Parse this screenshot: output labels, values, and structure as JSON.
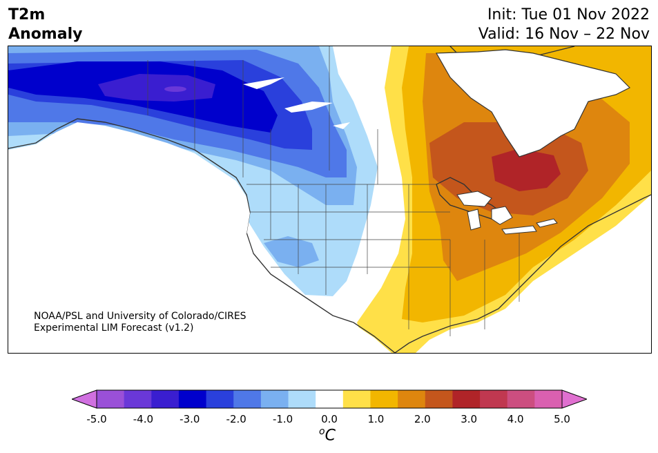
{
  "header": {
    "title_line1": "T2m",
    "title_line2": "Anomaly",
    "init": "Init: Tue 01 Nov 2022",
    "valid": "Valid: 16 Nov – 22 Nov"
  },
  "credit": {
    "line1": "NOAA/PSL and University of Colorado/CIRES",
    "line2": "Experimental LIM Forecast (v1.2)"
  },
  "colorbar": {
    "ticks": [
      "-5.0",
      "-4.0",
      "-3.0",
      "-2.0",
      "-1.0",
      "0.0",
      "1.0",
      "2.0",
      "3.0",
      "4.0",
      "5.0"
    ],
    "unit": "C",
    "unit_prefix": "o",
    "colors": [
      "#d070e0",
      "#9a50d8",
      "#6a38d8",
      "#3a1ed0",
      "#0000cc",
      "#2a40dc",
      "#4f78e8",
      "#7ab0f0",
      "#aedcfa",
      "#ffffff",
      "#ffe048",
      "#f2b600",
      "#de860e",
      "#c4561c",
      "#b02428",
      "#c03850",
      "#cc4e80",
      "#da60b0",
      "#e070d0"
    ]
  },
  "map": {
    "region": "North America",
    "colors": {
      "cold_deep": "#3a1ed0",
      "cold_strong": "#0000cc",
      "cold": "#2a40dc",
      "cool": "#4f78e8",
      "cool_light": "#7ab0f0",
      "cool_faint": "#aedcfa",
      "warm_faint": "#ffe048",
      "warm": "#f2b600",
      "warm_strong": "#de860e",
      "hot": "#c4561c",
      "hot_deep": "#b02428"
    }
  }
}
